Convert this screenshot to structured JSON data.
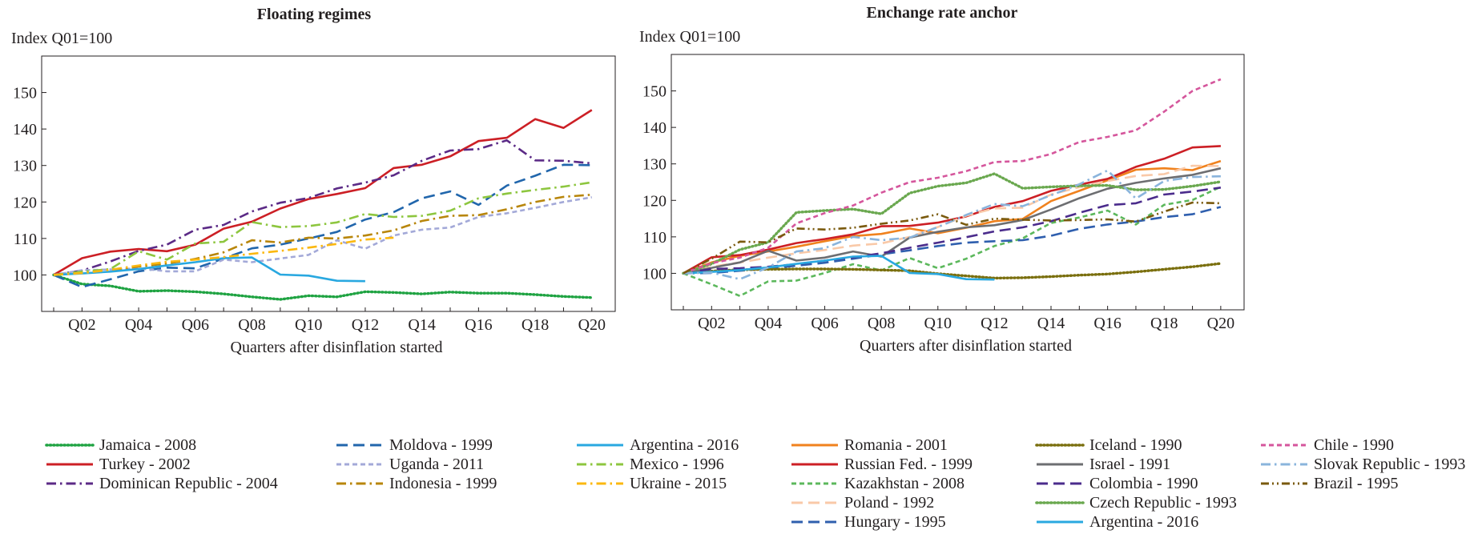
{
  "chart_data": [
    {
      "type": "line",
      "title": "Floating regimes",
      "unit_label": "Index Q01=100",
      "xlabel": "Quarters after disinflation started",
      "ylabel": "",
      "x": [
        "Q01",
        "Q02",
        "Q03",
        "Q04",
        "Q05",
        "Q06",
        "Q07",
        "Q08",
        "Q09",
        "Q10",
        "Q11",
        "Q12",
        "Q13",
        "Q14",
        "Q15",
        "Q16",
        "Q17",
        "Q18",
        "Q19",
        "Q20"
      ],
      "x_tick_labels": [
        "Q02",
        "Q04",
        "Q06",
        "Q08",
        "Q10",
        "Q12",
        "Q14",
        "Q16",
        "Q18",
        "Q20"
      ],
      "y_ticks": [
        100,
        110,
        120,
        130,
        140,
        150
      ],
      "ylim": [
        90,
        160
      ],
      "legend_position": "bottom",
      "series": [
        {
          "name": "Jamaica - 2008",
          "color": "#1fa342",
          "style": "dot",
          "values": [
            100,
            97.5,
            97,
            95.5,
            95.7,
            95.4,
            94.8,
            94,
            93.3,
            94.3,
            94,
            95.4,
            95.2,
            94.8,
            95.3,
            95,
            95,
            94.6,
            94.1,
            93.8
          ]
        },
        {
          "name": "Turkey - 2002",
          "color": "#cc1f25",
          "style": "solid",
          "values": [
            100,
            104.6,
            106.4,
            107.1,
            106.5,
            108.3,
            112.7,
            114.6,
            118.2,
            120.8,
            122.2,
            123.8,
            129.3,
            130.2,
            132.5,
            136.7,
            137.6,
            142.7,
            140.3,
            145.2
          ]
        },
        {
          "name": "Dominican Republic - 2004",
          "color": "#5b2a86",
          "style": "dashdot",
          "values": [
            100,
            101.2,
            103.7,
            106.6,
            108.3,
            112.4,
            113.7,
            117.4,
            119.8,
            121.1,
            123.7,
            125.3,
            127.3,
            131.3,
            134.1,
            134.5,
            136.9,
            131.4,
            131.3,
            130.6
          ]
        },
        {
          "name": "Moldova - 1999",
          "color": "#2166ac",
          "style": "longdash",
          "values": [
            100,
            96.7,
            98.8,
            101.0,
            102.0,
            101.8,
            104.5,
            107.3,
            108.3,
            110.0,
            111.8,
            115.2,
            117.2,
            121.0,
            122.9,
            119.2,
            124.5,
            127.2,
            130.2,
            130.1
          ]
        },
        {
          "name": "Uganda - 2011",
          "color": "#a3a9d8",
          "style": "shortdash",
          "values": [
            100,
            101.3,
            101.5,
            101.8,
            101.0,
            101.0,
            104.2,
            103.5,
            104.5,
            105.5,
            109.5,
            107.2,
            110.8,
            112.4,
            113.0,
            115.9,
            116.9,
            118.4,
            120.0,
            121.3
          ]
        },
        {
          "name": "Indonesia - 1999",
          "color": "#b8860b",
          "style": "dashdot",
          "values": [
            100,
            100.6,
            101.1,
            102.3,
            103.1,
            104.4,
            106.2,
            109.5,
            108.9,
            110.2,
            110.0,
            110.8,
            112.2,
            114.8,
            116.2,
            116.4,
            118.0,
            120.0,
            121.4,
            122.0
          ]
        },
        {
          "name": "Argentina - 2016",
          "color": "#29a8e0",
          "style": "solid",
          "values": [
            100,
            100.4,
            100.9,
            101.6,
            102.6,
            103.5,
            104.6,
            104.8,
            100.1,
            99.8,
            98.4,
            98.3,
            null,
            null,
            null,
            null,
            null,
            null,
            null,
            null
          ]
        },
        {
          "name": "Mexico - 1996",
          "color": "#8dc63f",
          "style": "dashdot",
          "values": [
            100,
            100.9,
            101.6,
            106.5,
            104.2,
            108.6,
            109.1,
            114.5,
            113.1,
            113.4,
            114.4,
            116.7,
            115.9,
            116.2,
            117.6,
            121.0,
            122.3,
            123.3,
            124.2,
            125.4
          ]
        },
        {
          "name": "Ukraine - 2015",
          "color": "#fbb810",
          "style": "dashdot",
          "values": [
            100,
            100.5,
            101.4,
            102.6,
            103.6,
            104.2,
            104.9,
            105.8,
            106.6,
            107.5,
            108.5,
            109.7,
            110.2,
            null,
            null,
            null,
            null,
            null,
            null,
            null
          ]
        }
      ]
    },
    {
      "type": "line",
      "title": "Enchange rate anchor",
      "unit_label": "Index Q01=100",
      "xlabel": "Quarters after disinflation started",
      "ylabel": "",
      "x": [
        "Q01",
        "Q02",
        "Q03",
        "Q04",
        "Q05",
        "Q06",
        "Q07",
        "Q08",
        "Q09",
        "Q10",
        "Q11",
        "Q12",
        "Q13",
        "Q14",
        "Q15",
        "Q16",
        "Q17",
        "Q18",
        "Q19",
        "Q20"
      ],
      "x_tick_labels": [
        "Q02",
        "Q04",
        "Q06",
        "Q08",
        "Q10",
        "Q12",
        "Q14",
        "Q16",
        "Q18",
        "Q20"
      ],
      "y_ticks": [
        100,
        110,
        120,
        130,
        140,
        150
      ],
      "ylim": [
        90,
        160
      ],
      "legend_position": "bottom",
      "series": [
        {
          "name": "Romania - 2001",
          "color": "#f0821e",
          "style": "solid",
          "values": [
            100,
            103.0,
            104.8,
            106.0,
            107.3,
            108.8,
            110.2,
            110.8,
            112.3,
            111.0,
            112.5,
            114.3,
            114.9,
            119.8,
            122.6,
            125.5,
            128.4,
            128.8,
            128.3,
            130.8
          ]
        },
        {
          "name": "Russian Fed. - 1999",
          "color": "#cc1f25",
          "style": "solid",
          "values": [
            100,
            104.4,
            105.0,
            106.5,
            108.3,
            109.4,
            110.7,
            112.9,
            113.0,
            113.9,
            115.6,
            118.2,
            119.8,
            122.6,
            124.3,
            125.9,
            129.2,
            131.4,
            134.5,
            134.9
          ]
        },
        {
          "name": "Kazakhstan - 2008",
          "color": "#5cb85c",
          "style": "shortdash",
          "values": [
            100,
            97.0,
            93.8,
            97.8,
            98.0,
            100.1,
            102.5,
            100.8,
            104.2,
            101.4,
            104.0,
            107.5,
            109.6,
            113.8,
            115.3,
            117.2,
            113.4,
            118.8,
            120.1,
            123.7
          ]
        },
        {
          "name": "Poland - 1992",
          "color": "#f9c9a8",
          "style": "longdash",
          "values": [
            100,
            101.8,
            103.0,
            104.3,
            105.5,
            106.4,
            107.6,
            108.2,
            110.0,
            112.7,
            115.8,
            117.8,
            118.0,
            121.6,
            123.6,
            125.3,
            126.7,
            127.2,
            129.5,
            129.4
          ]
        },
        {
          "name": "Hungary - 1995",
          "color": "#2f5fae",
          "style": "longdash",
          "values": [
            100,
            100.1,
            100.7,
            101.3,
            102.1,
            102.9,
            104.0,
            105.2,
            106.3,
            107.5,
            108.4,
            108.8,
            109.1,
            110.3,
            112.2,
            113.4,
            114.2,
            115.4,
            116.2,
            118.2
          ]
        },
        {
          "name": "Iceland - 1990",
          "color": "#7a6f0e",
          "style": "dot",
          "values": [
            100,
            100.6,
            101.0,
            101.1,
            101.2,
            101.2,
            101.1,
            100.9,
            100.7,
            99.9,
            99.3,
            98.7,
            98.8,
            99.1,
            99.5,
            99.8,
            100.4,
            101.1,
            101.8,
            102.7
          ]
        },
        {
          "name": "Israel - 1991",
          "color": "#6d6e71",
          "style": "solid",
          "values": [
            100,
            101.5,
            103.0,
            106.2,
            103.5,
            104.3,
            106.0,
            104.6,
            109.8,
            111.4,
            112.6,
            113.2,
            114.6,
            117.5,
            120.6,
            123.2,
            124.8,
            126.0,
            127.0,
            128.8
          ]
        },
        {
          "name": "Colombia - 1990",
          "color": "#4b2c8c",
          "style": "longdash",
          "values": [
            100,
            101.2,
            101.4,
            101.8,
            102.5,
            103.5,
            104.4,
            105.5,
            107.0,
            108.4,
            109.9,
            111.5,
            112.6,
            114.3,
            116.6,
            118.7,
            119.2,
            121.6,
            122.4,
            123.5
          ]
        },
        {
          "name": "Czech Republic - 1993",
          "color": "#6aa84f",
          "style": "dot",
          "values": [
            100,
            102.6,
            106.5,
            108.5,
            116.7,
            117.2,
            117.6,
            116.3,
            122.0,
            123.9,
            124.8,
            127.3,
            123.3,
            123.7,
            124.0,
            124.1,
            122.9,
            123.0,
            123.9,
            125.1
          ]
        },
        {
          "name": "Argentina - 2016",
          "color": "#29a8e0",
          "style": "solid",
          "values": [
            100,
            100.4,
            100.9,
            101.6,
            102.6,
            103.5,
            104.6,
            104.8,
            100.1,
            99.8,
            98.4,
            98.3,
            null,
            null,
            null,
            null,
            null,
            null,
            null,
            null
          ]
        },
        {
          "name": "Chile - 1990",
          "color": "#d5569c",
          "style": "shortdash",
          "values": [
            100,
            102.8,
            104.3,
            107.0,
            113.7,
            116.5,
            118.6,
            122.1,
            125.0,
            126.2,
            128.0,
            130.5,
            130.8,
            132.7,
            136.0,
            137.4,
            139.2,
            144.3,
            150.0,
            153.2
          ]
        },
        {
          "name": "Slovak Republic - 1993",
          "color": "#8ab4dc",
          "style": "dashdot",
          "values": [
            100,
            100.2,
            98.4,
            101.6,
            106.0,
            106.9,
            110.0,
            109.1,
            109.8,
            112.7,
            116.0,
            119.0,
            118.4,
            121.4,
            124.4,
            128.2,
            120.5,
            125.3,
            126.4,
            126.6
          ]
        },
        {
          "name": "Brazil - 1995",
          "color": "#7a5a0e",
          "style": "dashdotdot",
          "values": [
            100,
            104.0,
            108.7,
            108.5,
            112.3,
            112.0,
            112.5,
            113.6,
            114.5,
            116.2,
            113.3,
            115.0,
            114.7,
            114.5,
            114.6,
            114.8,
            114.2,
            116.9,
            119.4,
            119.2
          ]
        }
      ]
    }
  ]
}
